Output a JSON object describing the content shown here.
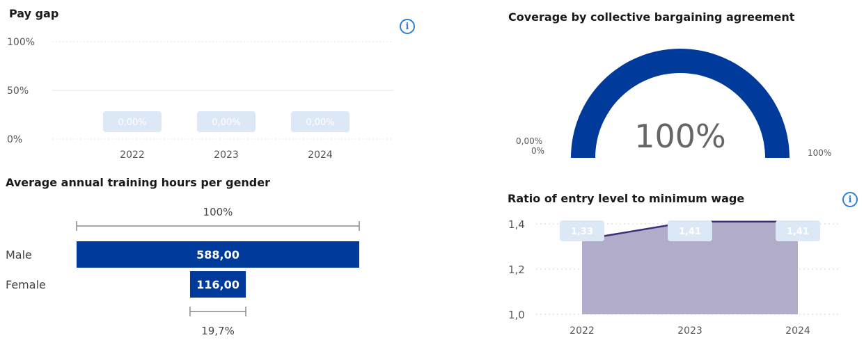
{
  "icons": {
    "info": "info-icon",
    "info_glyph": "i"
  },
  "colors": {
    "brand": "#003a9b",
    "label_bg": "#dde8f6",
    "label_text": "#ffffff",
    "area_fill": "#b1acc9",
    "area_line": "#3a2f7a",
    "grid": "#e3e3e3"
  },
  "chart_data": [
    {
      "id": "pay_gap",
      "type": "bar",
      "title": "Pay gap",
      "categories": [
        "2022",
        "2023",
        "2024"
      ],
      "values": [
        0.0,
        0.0,
        0.0
      ],
      "value_labels": [
        "0,00%",
        "0,00%",
        "0,00%"
      ],
      "yticks": [
        "0%",
        "50%",
        "100%"
      ],
      "ylim": [
        0,
        100
      ],
      "grid": true
    },
    {
      "id": "training_hours",
      "type": "bar",
      "orientation": "horizontal",
      "title": "Average annual training hours per gender",
      "categories": [
        "Male",
        "Female"
      ],
      "values": [
        588.0,
        116.0
      ],
      "value_labels": [
        "588,00",
        "116,00"
      ],
      "top_label": "100%",
      "bottom_label": "19,7%"
    },
    {
      "id": "coverage",
      "type": "gauge",
      "title": "Coverage by collective bargaining agreement",
      "value": 100,
      "value_label": "100%",
      "min_label": "0%",
      "max_label": "100%",
      "target_label": "0,00%"
    },
    {
      "id": "entry_wage_ratio",
      "type": "area",
      "title": "Ratio of entry level to minimum wage",
      "x": [
        "2022",
        "2023",
        "2024"
      ],
      "values": [
        1.33,
        1.41,
        1.41
      ],
      "value_labels": [
        "1,33",
        "1,41",
        "1,41"
      ],
      "yticks": [
        "1,0",
        "1,2",
        "1,4"
      ],
      "ylim": [
        1.0,
        1.4
      ],
      "grid": true
    }
  ]
}
